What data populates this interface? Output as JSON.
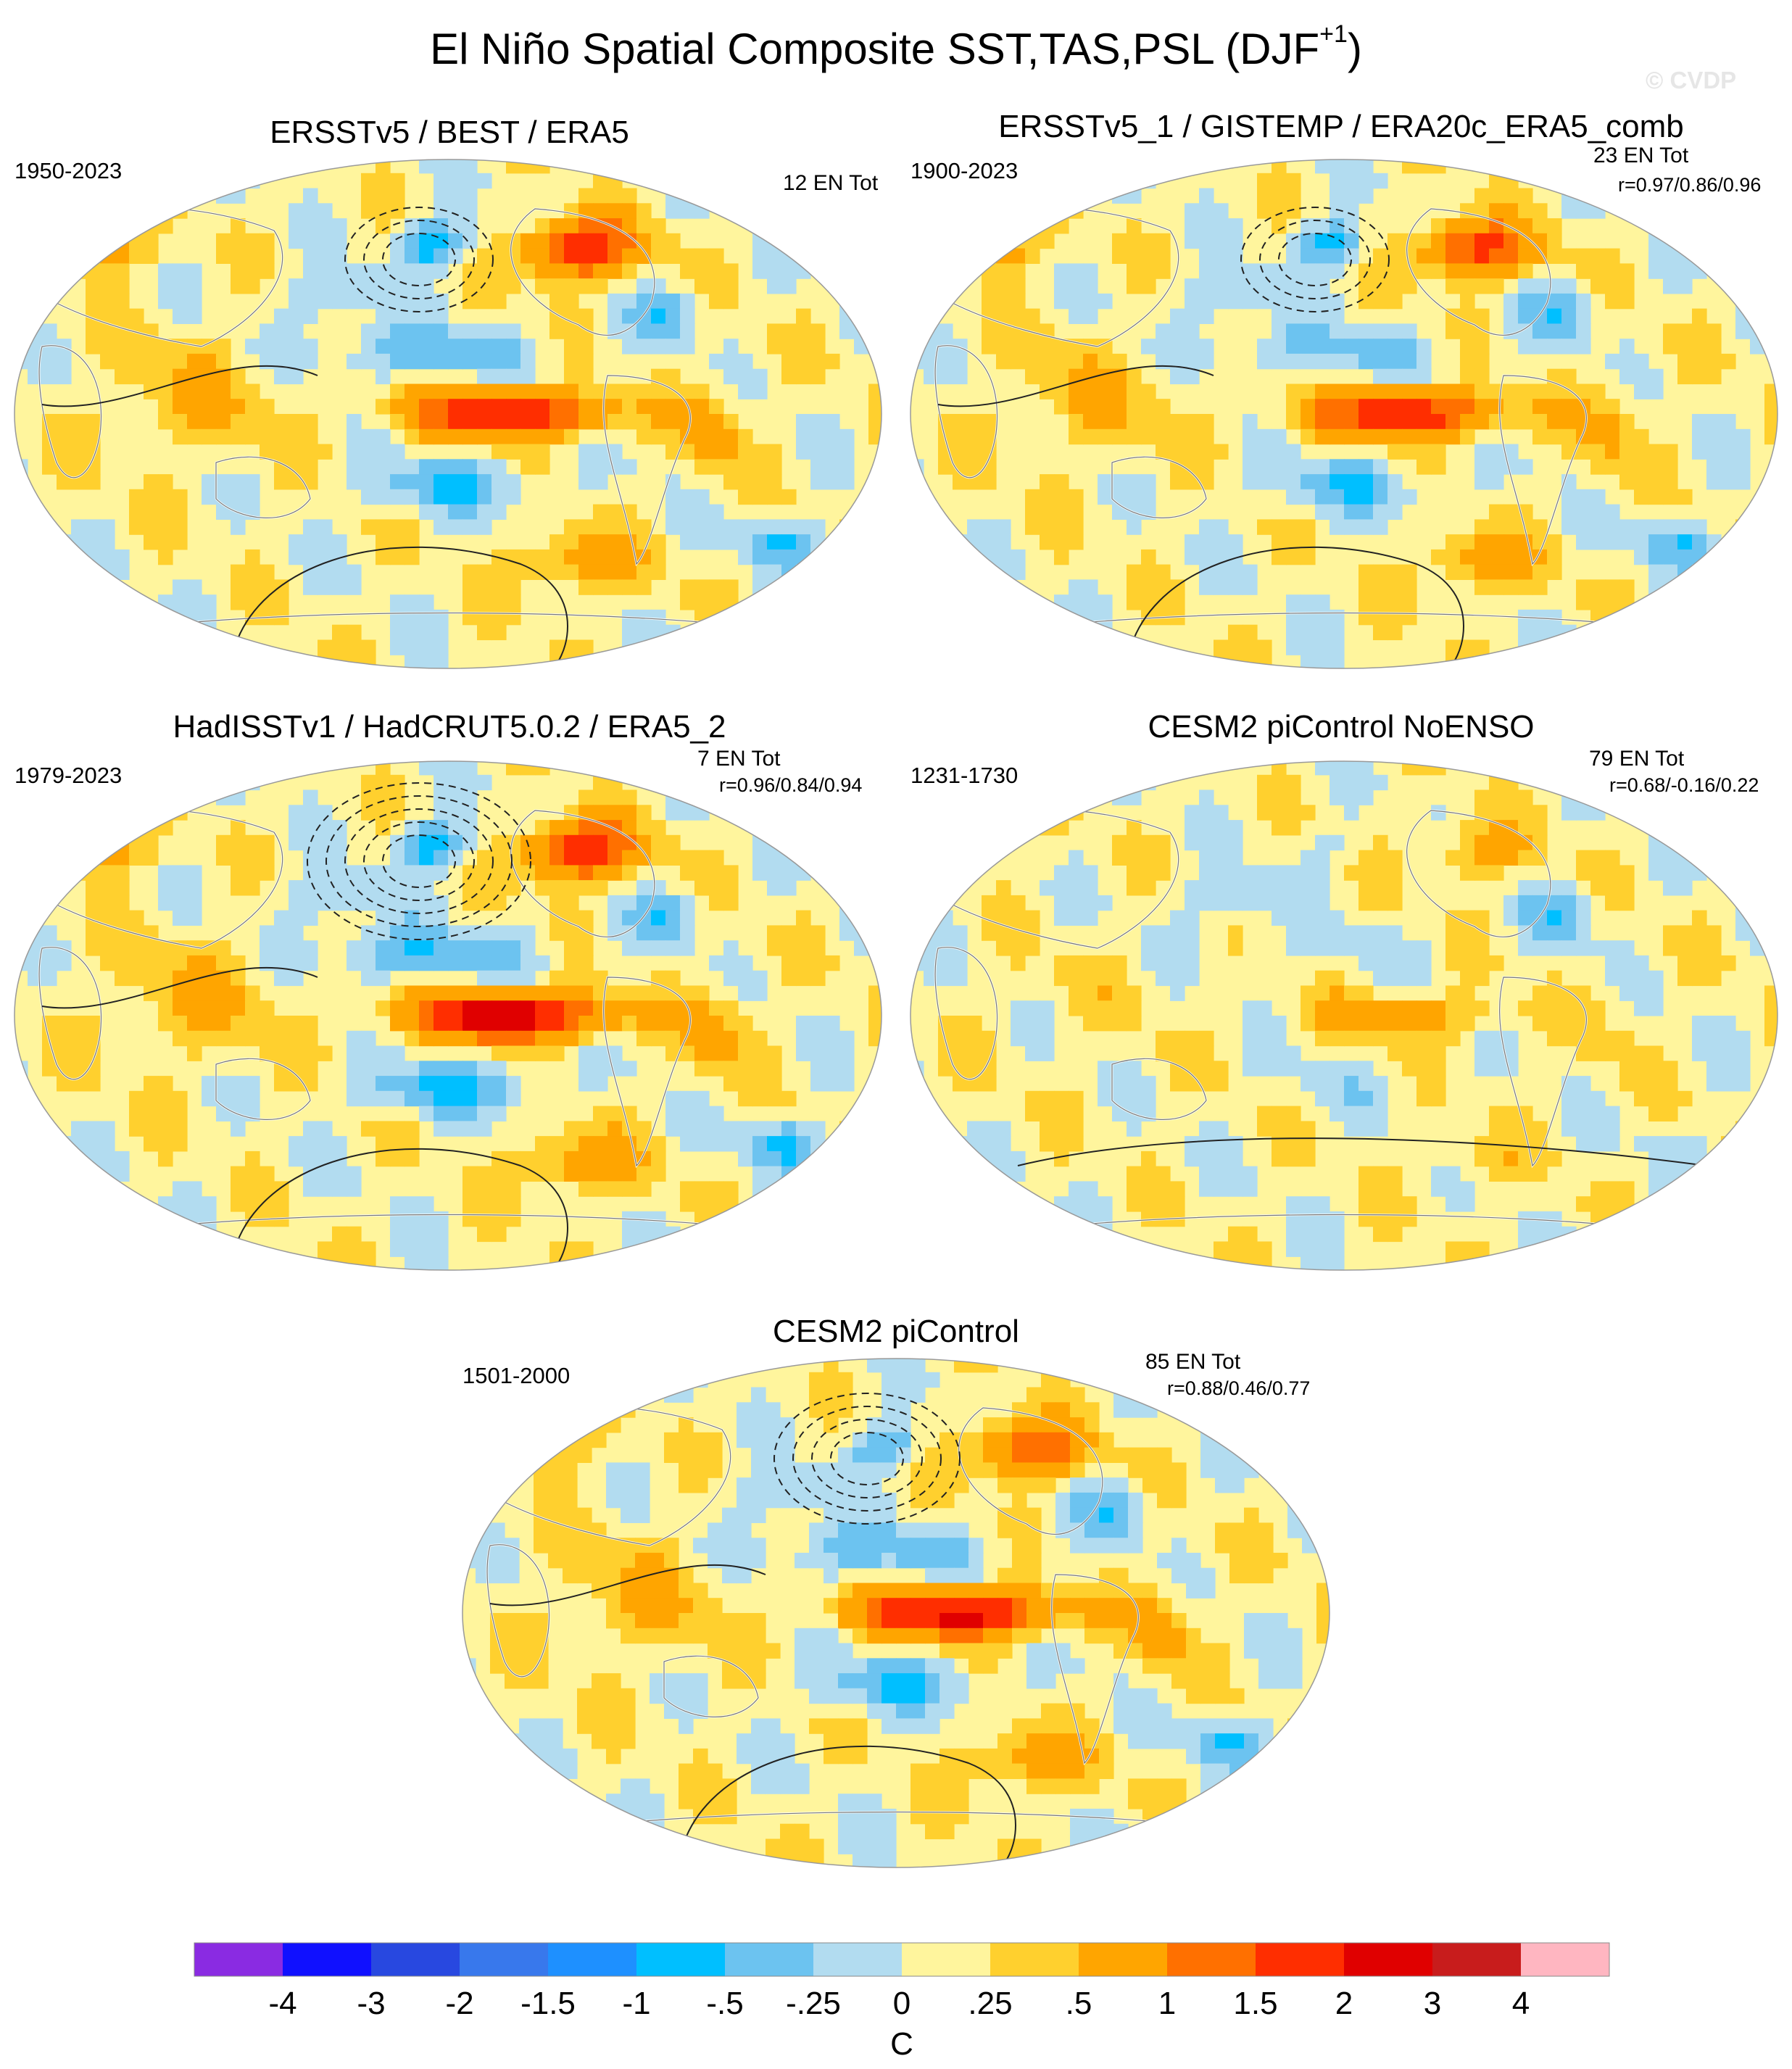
{
  "title_main": "El Niño Spatial Composite SST,TAS,PSL (DJF",
  "title_sup": "+1",
  "title_close": ")",
  "watermark": "© CVDP",
  "chart_data": {
    "type": "heatmap",
    "projection": "Robinson-like global map composite",
    "units": "C",
    "panels": [
      {
        "id": "p1",
        "title": "ERSSTv5 / BEST / ERA5",
        "years": "1950-2023",
        "count": "12 EN Tot",
        "corr": "",
        "enso_amp": 2.0,
        "nh_pattern": 1.0,
        "pdo": 1.0,
        "psl_contours": 3
      },
      {
        "id": "p2",
        "title": "ERSSTv5_1 / GISTEMP / ERA20c_ERA5_comb",
        "years": "1900-2023",
        "count": "23 EN Tot",
        "corr": "r=0.97/0.86/0.96",
        "enso_amp": 1.8,
        "nh_pattern": 0.9,
        "pdo": 0.9,
        "psl_contours": 3
      },
      {
        "id": "p3",
        "title": "HadISSTv1 / HadCRUT5.0.2 / ERA5_2",
        "years": "1979-2023",
        "count": "7 EN Tot",
        "corr": "r=0.96/0.84/0.94",
        "enso_amp": 2.4,
        "nh_pattern": 1.0,
        "pdo": 1.1,
        "psl_contours": 5
      },
      {
        "id": "p4",
        "title": "CESM2 piControl NoENSO",
        "years": "1231-1730",
        "count": "79 EN Tot",
        "corr": "r=0.68/-0.16/0.22",
        "enso_amp": 0.6,
        "nh_pattern": 0.3,
        "pdo": 0.3,
        "psl_contours": 0
      },
      {
        "id": "p5",
        "title": "CESM2 piControl",
        "years": "1501-2000",
        "count": "85 EN Tot",
        "corr": "r=0.88/0.46/0.77",
        "enso_amp": 2.2,
        "nh_pattern": 0.8,
        "pdo": 1.0,
        "psl_contours": 4
      }
    ],
    "colorbar": {
      "colors": [
        "#8a2be2",
        "#1010ff",
        "#2848e0",
        "#3878ec",
        "#1e90ff",
        "#00bfff",
        "#6cc3f0",
        "#b2dcf0",
        "#fff59d",
        "#ffd02e",
        "#ffa500",
        "#ff7000",
        "#ff2e00",
        "#e00000",
        "#c81c1c",
        "#ffb6c1"
      ],
      "tick_labels": [
        "-4",
        "-3",
        "-2",
        "-1.5",
        "-1",
        "-.5",
        "-.25",
        "0",
        ".25",
        ".5",
        "1",
        "1.5",
        "2",
        "3",
        "4"
      ],
      "levels": [
        -4,
        -3,
        -2,
        -1.5,
        -1,
        -0.5,
        -0.25,
        0,
        0.25,
        0.5,
        1,
        1.5,
        2,
        3,
        4
      ],
      "label": "C"
    }
  }
}
